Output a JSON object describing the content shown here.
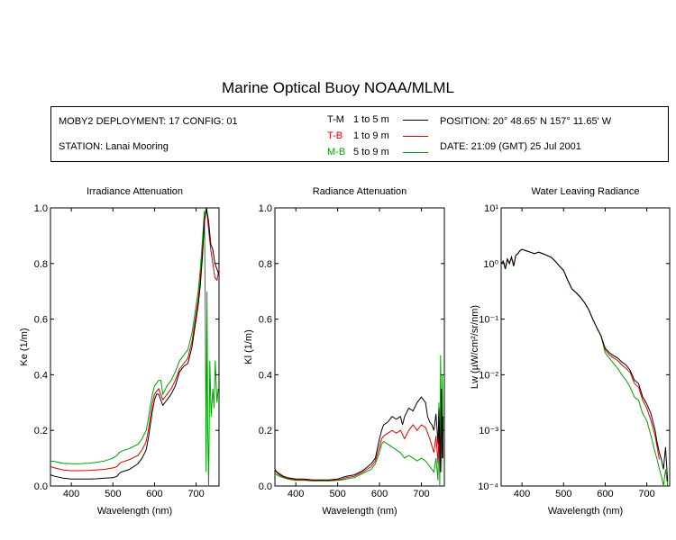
{
  "title": "Marine Optical Buoy NOAA/MLML",
  "info": {
    "deployment": "MOBY2 DEPLOYMENT: 17 CONFIG: 01",
    "station": "STATION: Lanai Mooring",
    "position": "POSITION: 20° 48.65' N   157° 11.65' W",
    "date": "DATE: 21:09 (GMT) 25 Jul 2001"
  },
  "legend": [
    {
      "code": "T-M",
      "range": "1 to 5  m",
      "color": "#000000"
    },
    {
      "code": "T-B",
      "range": "1 to 9  m",
      "color": "#e00000"
    },
    {
      "code": "M-B",
      "range": "5 to 9  m",
      "color": "#00a000"
    }
  ],
  "chart_data": [
    {
      "type": "line",
      "title": "Irradiance Attenuation",
      "xlabel": "Wavelength (nm)",
      "ylabel": "Ke  (1/m)",
      "xlim": [
        350,
        755
      ],
      "ylim": [
        0,
        1.0
      ],
      "xticks": [
        400,
        500,
        600,
        700
      ],
      "yticks": [
        "0.0",
        "0.2",
        "0.4",
        "0.6",
        "0.8",
        "1.0"
      ],
      "ytick_values": [
        0,
        0.2,
        0.4,
        0.6,
        0.8,
        1.0
      ],
      "series": [
        {
          "name": "T-M",
          "color": "#000000",
          "x": [
            350,
            360,
            380,
            400,
            420,
            440,
            460,
            480,
            500,
            510,
            515,
            520,
            540,
            560,
            570,
            580,
            585,
            590,
            595,
            600,
            605,
            610,
            620,
            630,
            640,
            650,
            660,
            670,
            680,
            690,
            700,
            705,
            710,
            715,
            720,
            725,
            730,
            735,
            740,
            745,
            750,
            755
          ],
          "y": [
            0.04,
            0.035,
            0.028,
            0.025,
            0.025,
            0.025,
            0.026,
            0.028,
            0.03,
            0.035,
            0.045,
            0.05,
            0.06,
            0.08,
            0.1,
            0.13,
            0.17,
            0.22,
            0.27,
            0.31,
            0.33,
            0.33,
            0.29,
            0.31,
            0.33,
            0.36,
            0.41,
            0.43,
            0.44,
            0.5,
            0.6,
            0.65,
            0.72,
            0.82,
            0.95,
            1.0,
            0.95,
            0.87,
            0.85,
            0.8,
            0.78,
            0.76
          ]
        },
        {
          "name": "T-B",
          "color": "#e00000",
          "x": [
            350,
            360,
            380,
            400,
            420,
            440,
            460,
            480,
            500,
            510,
            515,
            520,
            540,
            560,
            570,
            580,
            585,
            590,
            595,
            600,
            605,
            610,
            620,
            630,
            640,
            650,
            660,
            670,
            680,
            690,
            700,
            705,
            710,
            715,
            720,
            725,
            730,
            735,
            740,
            745,
            750,
            755
          ],
          "y": [
            0.07,
            0.065,
            0.058,
            0.055,
            0.055,
            0.056,
            0.058,
            0.06,
            0.065,
            0.07,
            0.08,
            0.085,
            0.095,
            0.11,
            0.13,
            0.16,
            0.2,
            0.25,
            0.3,
            0.33,
            0.34,
            0.35,
            0.31,
            0.33,
            0.35,
            0.38,
            0.42,
            0.44,
            0.46,
            0.52,
            0.62,
            0.67,
            0.74,
            0.84,
            0.96,
            1.0,
            0.92,
            0.85,
            0.8,
            0.75,
            0.74,
            0.78
          ]
        },
        {
          "name": "M-B",
          "color": "#00a000",
          "x": [
            350,
            360,
            380,
            400,
            420,
            440,
            460,
            480,
            500,
            510,
            515,
            520,
            540,
            560,
            570,
            580,
            585,
            590,
            595,
            600,
            605,
            610,
            615,
            620,
            630,
            640,
            650,
            660,
            670,
            680,
            690,
            700,
            705,
            710,
            715,
            720,
            722,
            724,
            726,
            728,
            730,
            733,
            736,
            740,
            743,
            746,
            750,
            753
          ],
          "y": [
            0.09,
            0.088,
            0.082,
            0.08,
            0.08,
            0.082,
            0.085,
            0.09,
            0.1,
            0.11,
            0.12,
            0.125,
            0.135,
            0.15,
            0.17,
            0.2,
            0.24,
            0.29,
            0.33,
            0.36,
            0.37,
            0.38,
            0.38,
            0.33,
            0.36,
            0.38,
            0.41,
            0.45,
            0.47,
            0.49,
            0.55,
            0.65,
            0.7,
            0.78,
            0.88,
            0.99,
            0.6,
            0.05,
            0.7,
            0.2,
            0.0,
            0.45,
            0.25,
            0.35,
            0.28,
            0.45,
            0.3,
            0.35
          ]
        }
      ]
    },
    {
      "type": "line",
      "title": "Radiance Attenuation",
      "xlabel": "Wavelength (nm)",
      "ylabel": "Kl  (1/m)",
      "xlim": [
        350,
        755
      ],
      "ylim": [
        0,
        1.0
      ],
      "xticks": [
        400,
        500,
        600,
        700
      ],
      "yticks": [
        "0.0",
        "0.2",
        "0.4",
        "0.6",
        "0.8",
        "1.0"
      ],
      "ytick_values": [
        0,
        0.2,
        0.4,
        0.6,
        0.8,
        1.0
      ],
      "series": [
        {
          "name": "T-M",
          "color": "#000000",
          "x": [
            350,
            355,
            360,
            370,
            380,
            400,
            420,
            440,
            460,
            480,
            500,
            510,
            520,
            540,
            560,
            580,
            590,
            600,
            605,
            610,
            620,
            630,
            640,
            650,
            655,
            660,
            670,
            680,
            690,
            700,
            710,
            715,
            720,
            725,
            730,
            735,
            740,
            742,
            745,
            748,
            750,
            752
          ],
          "y": [
            0.06,
            0.05,
            0.045,
            0.035,
            0.03,
            0.025,
            0.025,
            0.022,
            0.022,
            0.022,
            0.025,
            0.03,
            0.035,
            0.04,
            0.055,
            0.08,
            0.1,
            0.17,
            0.2,
            0.22,
            0.23,
            0.25,
            0.24,
            0.25,
            0.22,
            0.25,
            0.28,
            0.27,
            0.3,
            0.32,
            0.3,
            0.25,
            0.23,
            0.22,
            0.2,
            0.26,
            0.15,
            0.28,
            0.05,
            0.35,
            0.1,
            0.25
          ]
        },
        {
          "name": "T-B",
          "color": "#e00000",
          "x": [
            350,
            355,
            360,
            370,
            380,
            400,
            420,
            440,
            460,
            480,
            500,
            510,
            520,
            540,
            560,
            580,
            590,
            600,
            605,
            610,
            620,
            630,
            640,
            650,
            660,
            670,
            680,
            690,
            700,
            710,
            720,
            730,
            735,
            740,
            742,
            745,
            748,
            750,
            752
          ],
          "y": [
            0.055,
            0.048,
            0.04,
            0.032,
            0.028,
            0.022,
            0.022,
            0.02,
            0.02,
            0.02,
            0.022,
            0.025,
            0.03,
            0.035,
            0.05,
            0.07,
            0.09,
            0.14,
            0.17,
            0.18,
            0.19,
            0.2,
            0.19,
            0.2,
            0.17,
            0.2,
            0.22,
            0.2,
            0.22,
            0.21,
            0.17,
            0.12,
            0.18,
            0.08,
            0.2,
            0.05,
            0.22,
            0.1,
            0.15
          ]
        },
        {
          "name": "M-B",
          "color": "#00a000",
          "x": [
            350,
            355,
            360,
            370,
            380,
            400,
            420,
            440,
            460,
            480,
            500,
            510,
            520,
            540,
            560,
            580,
            590,
            600,
            605,
            610,
            620,
            630,
            640,
            650,
            660,
            670,
            680,
            690,
            700,
            710,
            720,
            730,
            735,
            740,
            742,
            744,
            746,
            748,
            750,
            752
          ],
          "y": [
            0.045,
            0.04,
            0.035,
            0.03,
            0.025,
            0.02,
            0.02,
            0.018,
            0.018,
            0.018,
            0.02,
            0.022,
            0.025,
            0.03,
            0.045,
            0.06,
            0.08,
            0.12,
            0.15,
            0.16,
            0.15,
            0.14,
            0.13,
            0.12,
            0.1,
            0.11,
            0.1,
            0.09,
            0.1,
            0.09,
            0.07,
            0.05,
            0.1,
            0.02,
            0.3,
            0.0,
            0.47,
            0.05,
            0.4,
            0.1
          ]
        }
      ]
    },
    {
      "type": "line",
      "title": "Water Leaving Radiance",
      "xlabel": "Wavelength (nm)",
      "ylabel": "Lw  (µW/cm²/sr/nm)",
      "log_y": true,
      "xlim": [
        350,
        755
      ],
      "ylim": [
        0.0001,
        10
      ],
      "xticks": [
        400,
        500,
        600,
        700
      ],
      "yticks": [
        "10⁻⁴",
        "10⁻³",
        "10⁻²",
        "10⁻¹",
        "10⁰",
        "10¹"
      ],
      "ytick_values": [
        0.0001,
        0.001,
        0.01,
        0.1,
        1,
        10
      ],
      "series": [
        {
          "name": "T-M",
          "color": "#000000",
          "x": [
            350,
            355,
            360,
            365,
            370,
            375,
            380,
            385,
            390,
            395,
            400,
            410,
            420,
            430,
            440,
            450,
            460,
            470,
            480,
            490,
            500,
            510,
            520,
            530,
            540,
            550,
            560,
            570,
            580,
            590,
            600,
            610,
            620,
            630,
            640,
            650,
            660,
            670,
            680,
            690,
            700,
            710,
            720,
            725,
            730,
            735,
            740,
            745,
            750
          ],
          "y": [
            1.0,
            1.1,
            0.8,
            1.2,
            1.0,
            1.3,
            0.9,
            1.4,
            1.5,
            1.7,
            1.8,
            1.7,
            1.6,
            1.5,
            1.6,
            1.5,
            1.4,
            1.3,
            1.1,
            0.9,
            0.75,
            0.5,
            0.35,
            0.3,
            0.25,
            0.2,
            0.15,
            0.1,
            0.07,
            0.05,
            0.03,
            0.025,
            0.022,
            0.02,
            0.017,
            0.015,
            0.012,
            0.008,
            0.007,
            0.004,
            0.003,
            0.002,
            0.001,
            0.0006,
            0.0004,
            0.0003,
            0.0002,
            0.0005,
            0.00012
          ]
        },
        {
          "name": "T-B",
          "color": "#e00000",
          "x": [
            350,
            355,
            360,
            365,
            370,
            375,
            380,
            385,
            390,
            395,
            400,
            410,
            420,
            430,
            440,
            450,
            460,
            470,
            480,
            490,
            500,
            510,
            520,
            530,
            540,
            550,
            560,
            570,
            580,
            590,
            600,
            610,
            620,
            630,
            640,
            650,
            660,
            670,
            680,
            690,
            700,
            710,
            720,
            725,
            730
          ],
          "y": [
            1.0,
            1.1,
            0.8,
            1.2,
            1.0,
            1.3,
            0.9,
            1.4,
            1.5,
            1.7,
            1.8,
            1.7,
            1.6,
            1.5,
            1.6,
            1.5,
            1.4,
            1.3,
            1.1,
            0.9,
            0.75,
            0.5,
            0.35,
            0.3,
            0.25,
            0.2,
            0.15,
            0.1,
            0.07,
            0.05,
            0.028,
            0.023,
            0.02,
            0.018,
            0.015,
            0.013,
            0.011,
            0.007,
            0.006,
            0.0035,
            0.0025,
            0.0015,
            0.0008,
            0.0005,
            0.0003
          ]
        },
        {
          "name": "M-B",
          "color": "#00a000",
          "x": [
            350,
            355,
            360,
            365,
            370,
            375,
            380,
            385,
            390,
            395,
            400,
            410,
            420,
            430,
            440,
            450,
            460,
            470,
            480,
            490,
            500,
            510,
            520,
            530,
            540,
            550,
            560,
            570,
            580,
            590,
            600,
            610,
            620,
            630,
            640,
            650,
            660,
            670,
            680,
            690,
            700,
            710,
            720,
            725,
            730,
            735,
            740,
            745,
            750
          ],
          "y": [
            1.0,
            1.1,
            0.8,
            1.2,
            1.0,
            1.3,
            0.9,
            1.4,
            1.5,
            1.7,
            1.8,
            1.7,
            1.6,
            1.5,
            1.6,
            1.5,
            1.4,
            1.3,
            1.1,
            0.9,
            0.75,
            0.5,
            0.35,
            0.3,
            0.25,
            0.2,
            0.15,
            0.1,
            0.07,
            0.05,
            0.025,
            0.02,
            0.016,
            0.013,
            0.01,
            0.008,
            0.006,
            0.004,
            0.0035,
            0.002,
            0.0015,
            0.0008,
            0.0004,
            0.0003,
            0.0002,
            0.00015,
            0.0001,
            0.0002,
            0.0001
          ]
        }
      ]
    }
  ]
}
